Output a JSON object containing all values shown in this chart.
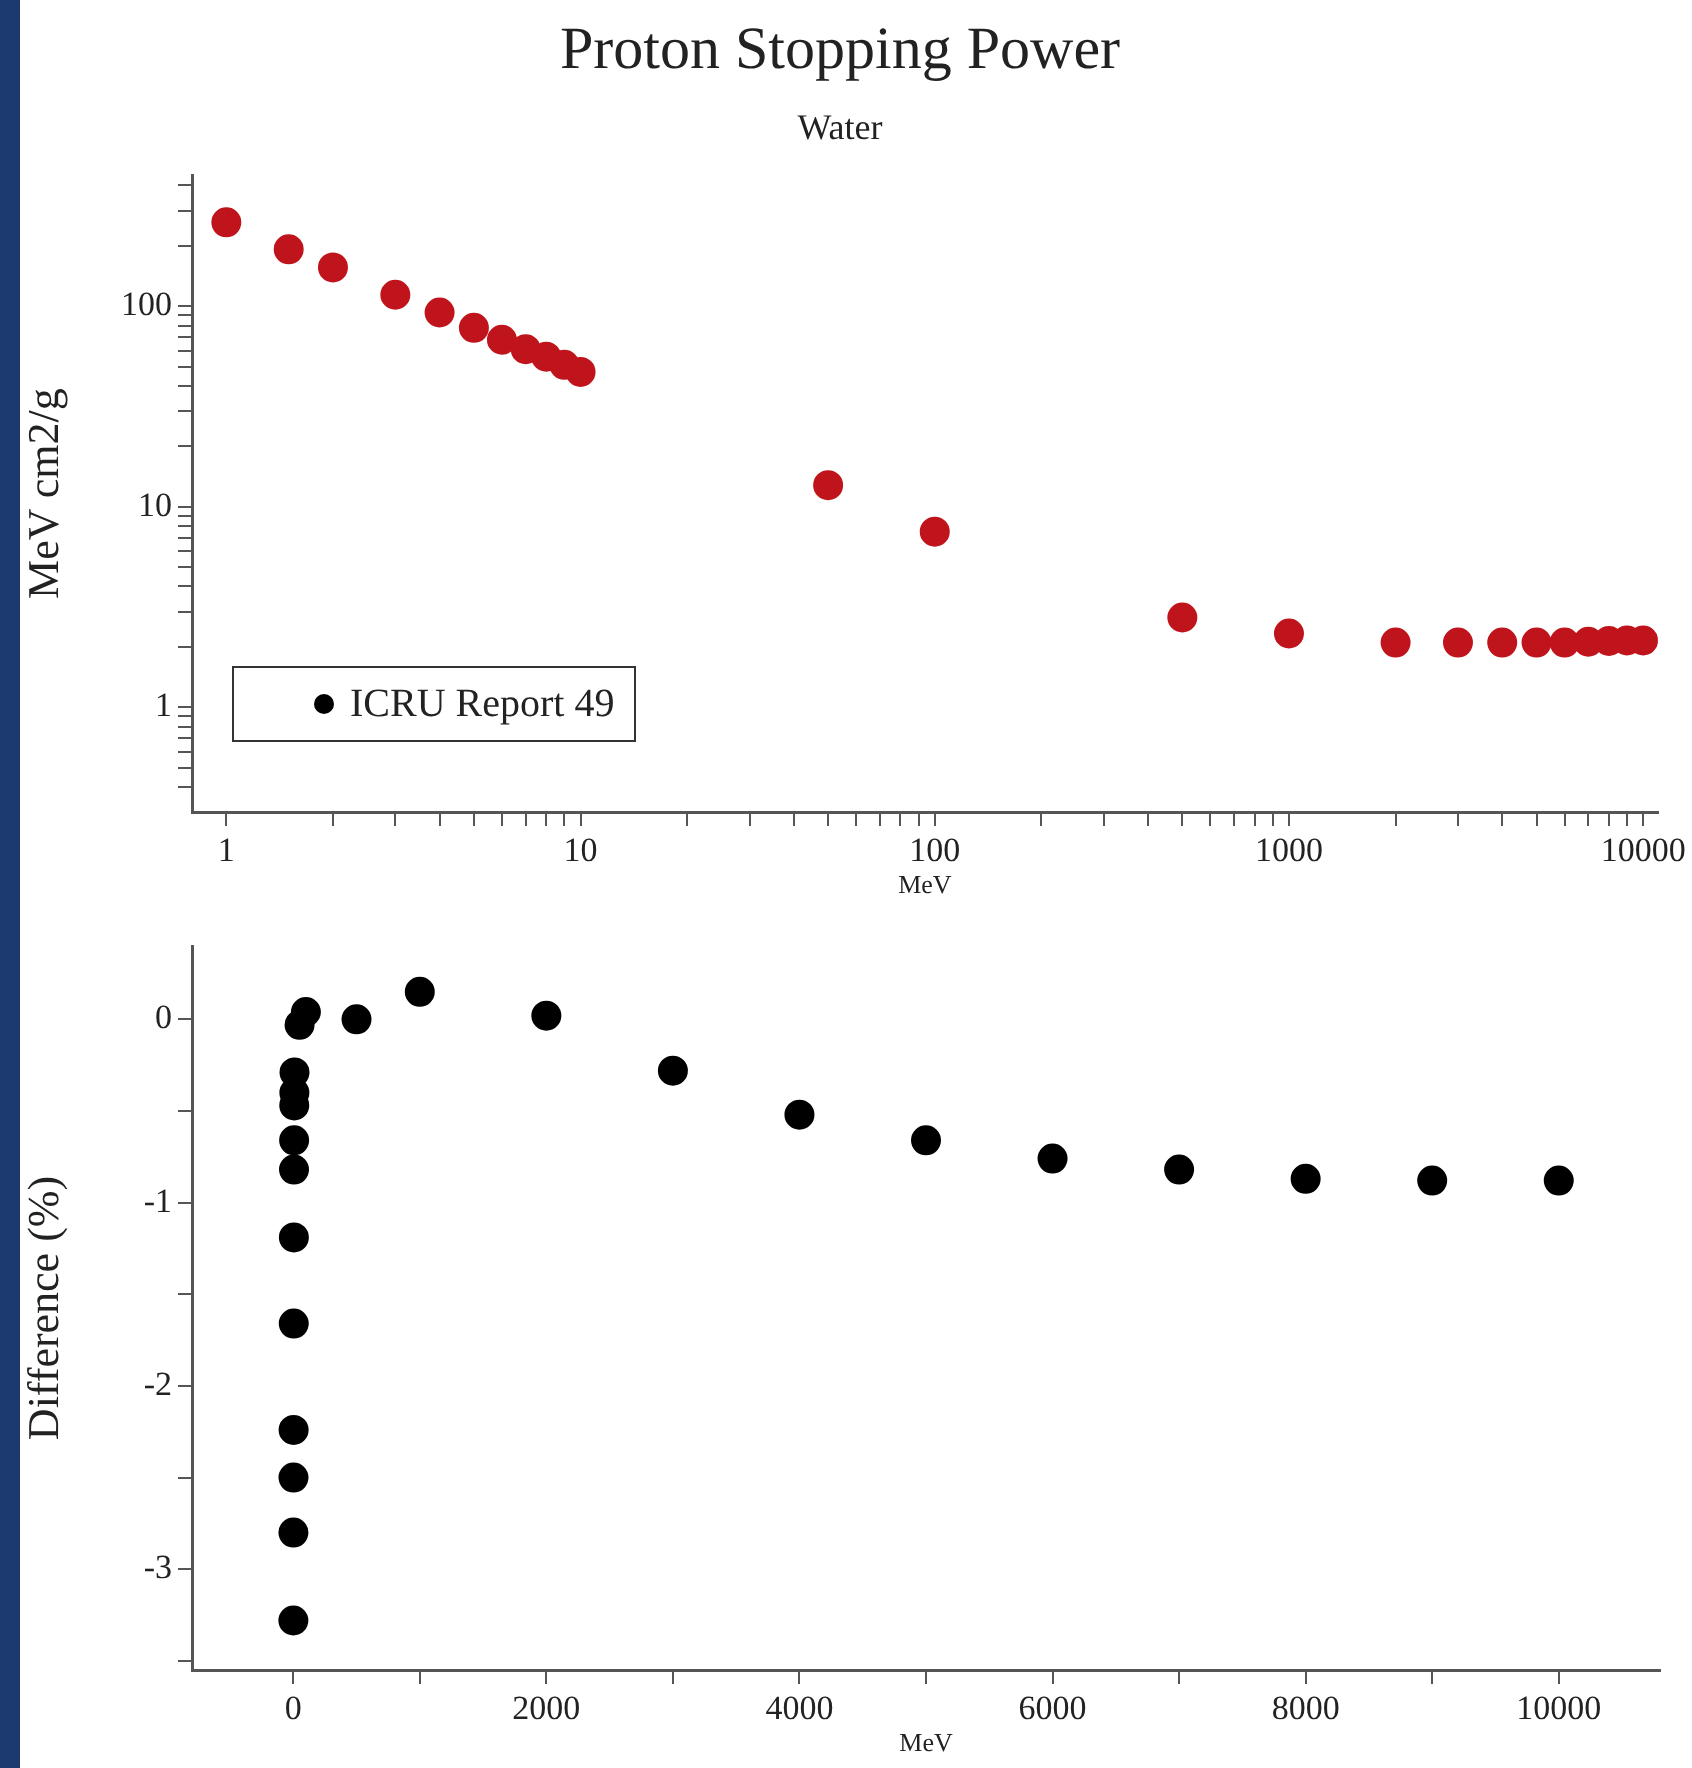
{
  "chart_data": [
    {
      "type": "scatter",
      "title": "Proton Stopping Power",
      "subtitle": "Water",
      "xlabel": "MeV",
      "ylabel": "MeV cm2/g",
      "log": "xy",
      "marker": "circle",
      "legend": "bottom left",
      "grid": false,
      "x": [
        1,
        1.5,
        2,
        3,
        4,
        5,
        6,
        7,
        8,
        9,
        10,
        50,
        100,
        500,
        1000,
        2000,
        3000,
        4000,
        5000,
        6000,
        7000,
        8000,
        9000,
        10000
      ],
      "series": [
        {
          "name": "ICRU Report 49",
          "color": "#000000",
          "values": [
            null,
            null,
            null,
            null,
            null,
            null,
            null,
            null,
            null,
            null,
            null,
            null,
            null,
            null,
            null,
            null,
            null,
            null,
            null,
            null,
            null,
            null,
            null,
            null
          ]
        },
        {
          "color": "#c0141c",
          "values": [
            262,
            192,
            156,
            114,
            93,
            78,
            68,
            61,
            56,
            51,
            47,
            12.8,
            7.5,
            2.8,
            2.33,
            2.1,
            2.1,
            2.1,
            2.1,
            2.1,
            2.12,
            2.14,
            2.15,
            2.15
          ]
        }
      ],
      "xlim": [
        0.8,
        11000
      ],
      "xticks": [
        1,
        {
          "value": 2,
          "label": null
        },
        {
          "value": 3,
          "label": null
        },
        {
          "value": 4,
          "label": null
        },
        {
          "value": 5,
          "label": null
        },
        {
          "value": 6,
          "label": null
        },
        {
          "value": 7,
          "label": null
        },
        {
          "value": 8,
          "label": null
        },
        {
          "value": 9,
          "label": null
        },
        10,
        {
          "value": 20,
          "label": null
        },
        {
          "value": 30,
          "label": null
        },
        {
          "value": 40,
          "label": null
        },
        {
          "value": 50,
          "label": null
        },
        {
          "value": 60,
          "label": null
        },
        {
          "value": 70,
          "label": null
        },
        {
          "value": 80,
          "label": null
        },
        {
          "value": 90,
          "label": null
        },
        100,
        {
          "value": 200,
          "label": null
        },
        {
          "value": 300,
          "label": null
        },
        {
          "value": 400,
          "label": null
        },
        {
          "value": 500,
          "label": null
        },
        {
          "value": 600,
          "label": null
        },
        {
          "value": 700,
          "label": null
        },
        {
          "value": 800,
          "label": null
        },
        {
          "value": 900,
          "label": null
        },
        1000,
        {
          "value": 2000,
          "label": null
        },
        {
          "value": 3000,
          "label": null
        },
        {
          "value": 4000,
          "label": null
        },
        {
          "value": 5000,
          "label": null
        },
        {
          "value": 6000,
          "label": null
        },
        {
          "value": 7000,
          "label": null
        },
        {
          "value": 8000,
          "label": null
        },
        {
          "value": 9000,
          "label": null
        },
        10000
      ],
      "ylim": [
        0.3,
        450
      ],
      "yticks": [
        {
          "value": 0.4,
          "label": null
        },
        {
          "value": 0.5,
          "label": null
        },
        {
          "value": 0.6,
          "label": null
        },
        {
          "value": 0.7,
          "label": null
        },
        {
          "value": 0.8,
          "label": null
        },
        {
          "value": 0.9,
          "label": null
        },
        1,
        {
          "value": 2,
          "label": null
        },
        {
          "value": 3,
          "label": null
        },
        {
          "value": 4,
          "label": null
        },
        {
          "value": 5,
          "label": null
        },
        {
          "value": 6,
          "label": null
        },
        {
          "value": 7,
          "label": null
        },
        {
          "value": 8,
          "label": null
        },
        {
          "value": 9,
          "label": null
        },
        10,
        {
          "value": 20,
          "label": null
        },
        {
          "value": 30,
          "label": null
        },
        {
          "value": 40,
          "label": null
        },
        {
          "value": 50,
          "label": null
        },
        {
          "value": 60,
          "label": null
        },
        {
          "value": 70,
          "label": null
        },
        {
          "value": 80,
          "label": null
        },
        {
          "value": 90,
          "label": null
        },
        100,
        {
          "value": 200,
          "label": null
        },
        {
          "value": 300,
          "label": null
        },
        {
          "value": 400,
          "label": null
        }
      ]
    },
    {
      "type": "scatter",
      "xlabel": "MeV",
      "ylabel": "Difference (%)",
      "marker": "circle",
      "grid": false,
      "x": [
        1,
        1.5,
        2,
        3,
        4,
        5,
        6,
        7,
        8,
        9,
        10,
        50,
        100,
        500,
        1000,
        2000,
        3000,
        4000,
        5000,
        6000,
        7000,
        8000,
        9000,
        10000
      ],
      "series": [
        {
          "color": "#000000",
          "values": [
            -3.28,
            -2.8,
            -2.5,
            -2.24,
            -1.66,
            -1.19,
            -0.82,
            -0.66,
            -0.47,
            -0.4,
            -0.29,
            -0.03,
            0.04,
            0.0,
            0.15,
            0.02,
            -0.28,
            -0.52,
            -0.66,
            -0.76,
            -0.82,
            -0.87,
            -0.88,
            -0.88
          ]
        }
      ],
      "xlim": [
        -800,
        10800
      ],
      "xticks": [
        0,
        {
          "value": 1000,
          "label": null
        },
        2000,
        {
          "value": 3000,
          "label": null
        },
        4000,
        {
          "value": 5000,
          "label": null
        },
        6000,
        {
          "value": 7000,
          "label": null
        },
        8000,
        {
          "value": 9000,
          "label": null
        },
        10000
      ],
      "ylim": [
        -3.55,
        0.4
      ],
      "yticks": [
        {
          "value": -3.5,
          "label": null
        },
        -3,
        {
          "value": -2.5,
          "label": null
        },
        -2,
        {
          "value": -1.5,
          "label": null
        },
        -1,
        {
          "value": -0.5,
          "label": null
        },
        0
      ]
    }
  ]
}
